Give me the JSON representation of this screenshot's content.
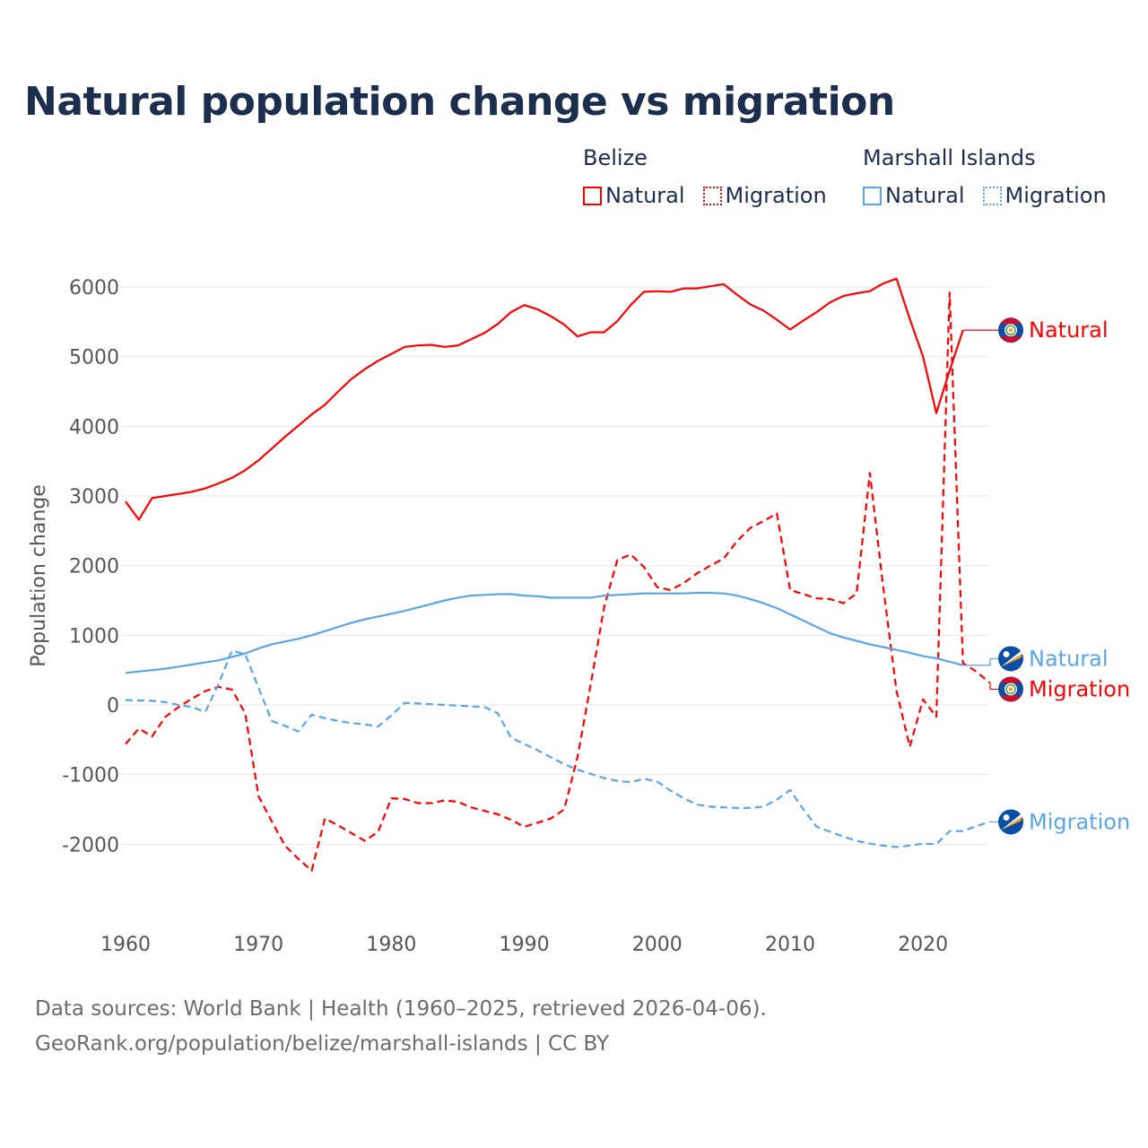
{
  "title": "Natural population change vs migration",
  "legend": {
    "groups": [
      {
        "name": "Belize",
        "items": [
          {
            "label": "Natural",
            "style": "solid",
            "color": "#ff0000"
          },
          {
            "label": "Migration",
            "style": "dotted",
            "color": "#ff0000"
          }
        ]
      },
      {
        "name": "Marshall Islands",
        "items": [
          {
            "label": "Natural",
            "style": "solid",
            "color": "#5aa5e8"
          },
          {
            "label": "Migration",
            "style": "dotted",
            "color": "#5aa5e8"
          }
        ]
      }
    ]
  },
  "footer": {
    "line1": "Data sources: World Bank | Health (1960–2025, retrieved 2026-04-06).",
    "line2": "GeoRank.org/population/belize/marshall-islands | CC BY"
  },
  "chart_data": {
    "type": "line",
    "title": "Natural population change vs migration",
    "xlabel": "",
    "ylabel": "Population change",
    "xlim": [
      1960,
      2025
    ],
    "ylim": [
      -2600,
      6300
    ],
    "xticks": [
      1960,
      1970,
      1980,
      1990,
      2000,
      2010,
      2020
    ],
    "yticks": [
      -2000,
      -1000,
      0,
      1000,
      2000,
      3000,
      4000,
      5000,
      6000
    ],
    "grid": true,
    "legend_position": "top-right",
    "series": [
      {
        "name": "Belize Natural",
        "country": "Belize",
        "label": "Natural",
        "color": "#ff0000",
        "dash": false,
        "flag": "belize-flag-icon",
        "start": 1960,
        "values": [
          2920,
          2660,
          2970,
          3000,
          3030,
          3060,
          3110,
          3180,
          3260,
          3370,
          3510,
          3680,
          3850,
          4010,
          4170,
          4310,
          4500,
          4680,
          4820,
          4940,
          5040,
          5140,
          5160,
          5170,
          5140,
          5160,
          5250,
          5340,
          5470,
          5640,
          5740,
          5680,
          5580,
          5460,
          5290,
          5350,
          5350,
          5510,
          5740,
          5930,
          5940,
          5930,
          5980,
          5980,
          6010,
          6040,
          5890,
          5750,
          5660,
          5530,
          5390,
          5520,
          5640,
          5780,
          5870,
          5910,
          5940,
          6050,
          6120,
          5540,
          5000,
          4190,
          4800,
          5380
        ]
      },
      {
        "name": "Belize Migration",
        "country": "Belize",
        "label": "Migration",
        "color": "#ff0000",
        "dash": true,
        "flag": "belize-flag-icon",
        "start": 1960,
        "values": [
          -560,
          -340,
          -450,
          -170,
          -30,
          90,
          200,
          260,
          220,
          -120,
          -1310,
          -1670,
          -2020,
          -2210,
          -2380,
          -1630,
          -1730,
          -1840,
          -1950,
          -1820,
          -1340,
          -1350,
          -1410,
          -1410,
          -1370,
          -1390,
          -1470,
          -1520,
          -1570,
          -1650,
          -1750,
          -1690,
          -1630,
          -1500,
          -750,
          300,
          1400,
          2080,
          2160,
          1980,
          1690,
          1650,
          1750,
          1890,
          2000,
          2100,
          2350,
          2540,
          2640,
          2750,
          1650,
          1590,
          1530,
          1520,
          1460,
          1600,
          3330,
          1700,
          200,
          -600,
          80,
          -170,
          5920,
          600,
          480,
          320
        ]
      },
      {
        "name": "Marshall Islands Natural",
        "country": "Marshall Islands",
        "label": "Natural",
        "color": "#5aa5e8",
        "dash": false,
        "flag": "marshall-islands-flag-icon",
        "start": 1960,
        "values": [
          460,
          480,
          500,
          520,
          550,
          580,
          610,
          640,
          690,
          740,
          810,
          870,
          910,
          950,
          1000,
          1060,
          1120,
          1180,
          1230,
          1270,
          1310,
          1350,
          1400,
          1450,
          1500,
          1540,
          1570,
          1580,
          1590,
          1590,
          1570,
          1560,
          1540,
          1540,
          1540,
          1540,
          1570,
          1580,
          1590,
          1600,
          1600,
          1600,
          1600,
          1610,
          1610,
          1600,
          1570,
          1520,
          1460,
          1390,
          1300,
          1210,
          1120,
          1030,
          970,
          920,
          870,
          830,
          790,
          750,
          700,
          670,
          620,
          570
        ]
      },
      {
        "name": "Marshall Islands Migration",
        "country": "Marshall Islands",
        "label": "Migration",
        "color": "#5aa5e8",
        "dash": true,
        "flag": "marshall-islands-flag-icon",
        "start": 1960,
        "values": [
          70,
          65,
          60,
          40,
          0,
          -30,
          -100,
          300,
          780,
          730,
          250,
          -230,
          -300,
          -380,
          -140,
          -190,
          -230,
          -260,
          -280,
          -310,
          -150,
          30,
          20,
          10,
          0,
          -10,
          -20,
          -30,
          -120,
          -470,
          -560,
          -650,
          -750,
          -850,
          -930,
          -990,
          -1050,
          -1090,
          -1110,
          -1060,
          -1100,
          -1230,
          -1340,
          -1430,
          -1460,
          -1470,
          -1480,
          -1480,
          -1460,
          -1360,
          -1220,
          -1500,
          -1750,
          -1820,
          -1890,
          -1950,
          -1990,
          -2020,
          -2040,
          -2020,
          -1990,
          -2000,
          -1810,
          -1810,
          -1740,
          -1680
        ]
      }
    ]
  }
}
